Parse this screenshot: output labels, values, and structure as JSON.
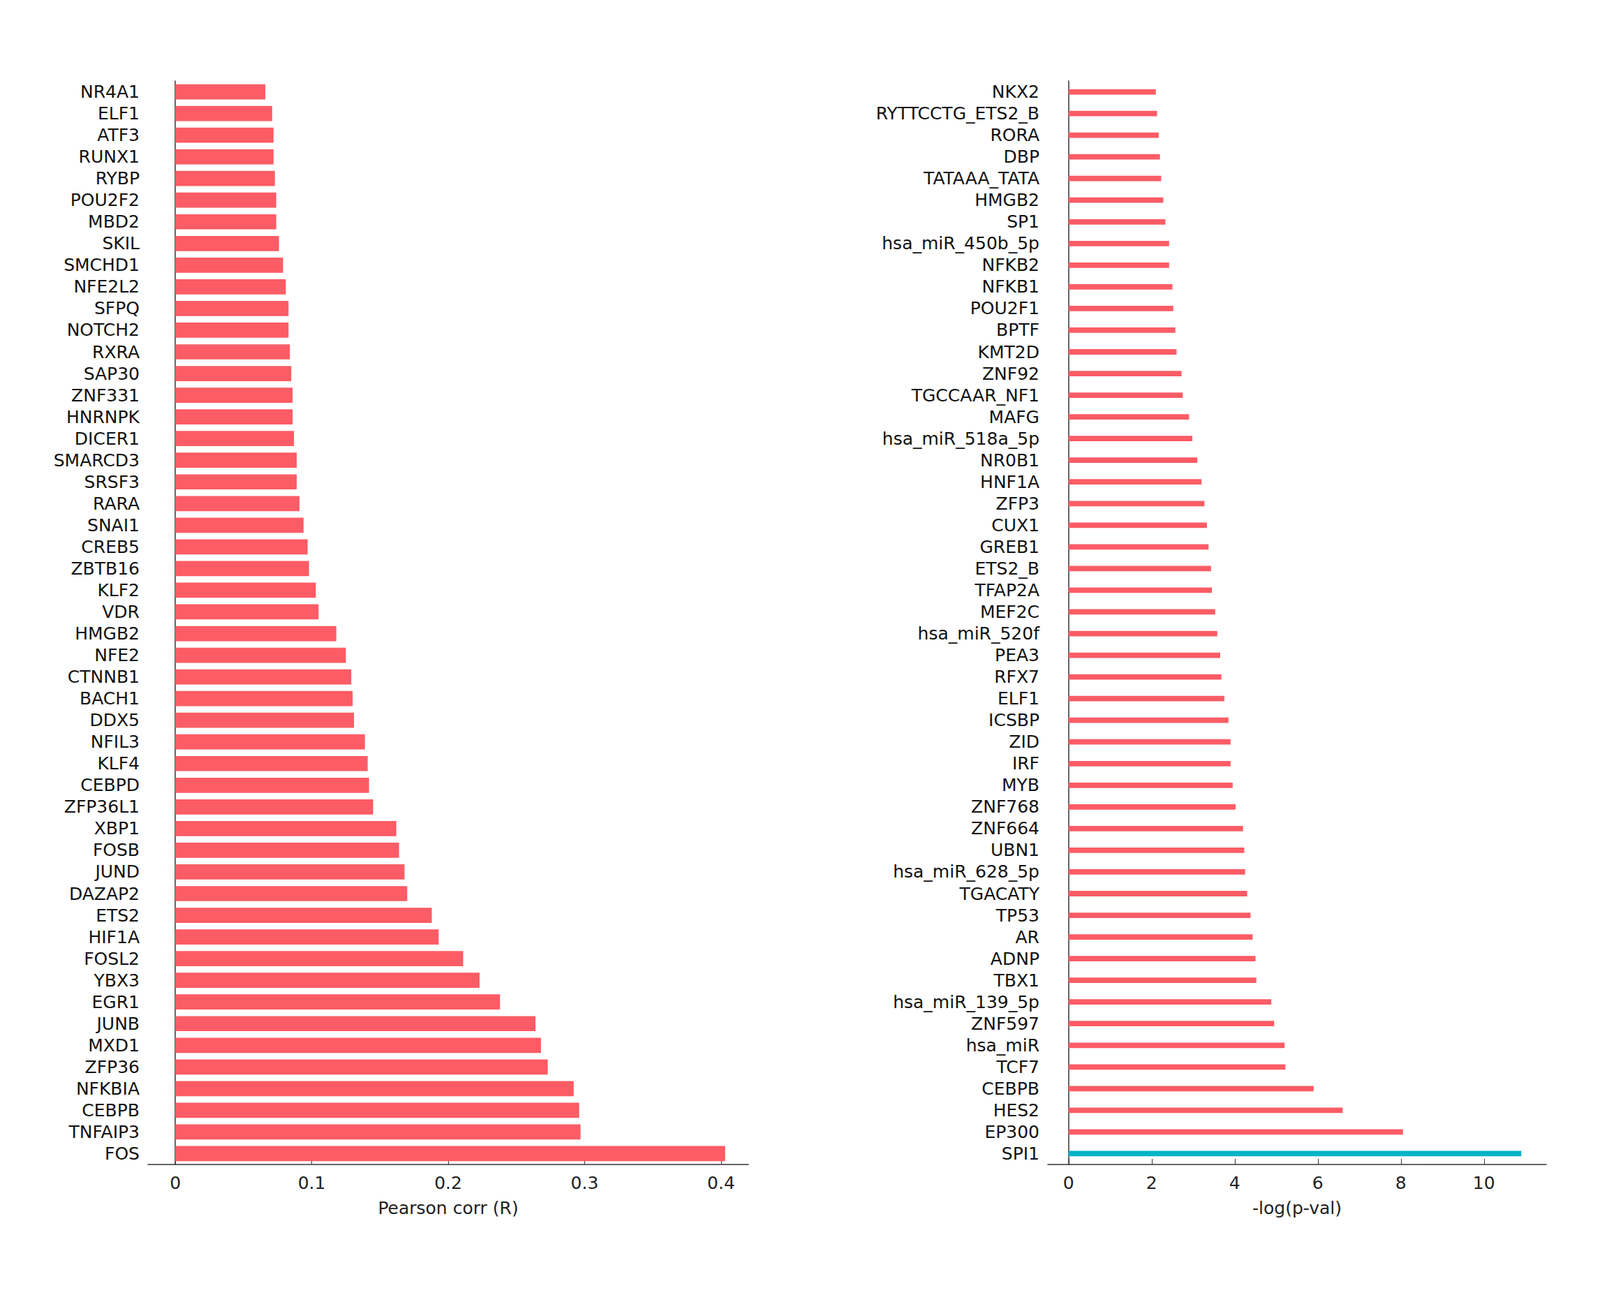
{
  "chart_data": [
    {
      "type": "bar",
      "orientation": "horizontal",
      "x_label": "Pearson corr (R)",
      "color": "#fc5c65",
      "categories": [
        "NR4A1",
        "ELF1",
        "ATF3",
        "RUNX1",
        "RYBP",
        "POU2F2",
        "MBD2",
        "SKIL",
        "SMCHD1",
        "NFE2L2",
        "SFPQ",
        "NOTCH2",
        "RXRA",
        "SAP30",
        "ZNF331",
        "HNRNPK",
        "DICER1",
        "SMARCD3",
        "SRSF3",
        "RARA",
        "SNAI1",
        "CREB5",
        "ZBTB16",
        "KLF2",
        "VDR",
        "HMGB2",
        "NFE2",
        "CTNNB1",
        "BACH1",
        "DDX5",
        "NFIL3",
        "KLF4",
        "CEBPD",
        "ZFP36L1",
        "XBP1",
        "FOSB",
        "JUND",
        "DAZAP2",
        "ETS2",
        "HIF1A",
        "FOSL2",
        "YBX3",
        "EGR1",
        "JUNB",
        "MXD1",
        "ZFP36",
        "NFKBIA",
        "CEBPB",
        "TNFAIP3",
        "FOS"
      ],
      "values": [
        0.066,
        0.071,
        0.072,
        0.072,
        0.073,
        0.074,
        0.074,
        0.076,
        0.079,
        0.081,
        0.083,
        0.083,
        0.084,
        0.085,
        0.086,
        0.086,
        0.087,
        0.089,
        0.089,
        0.091,
        0.094,
        0.097,
        0.098,
        0.103,
        0.105,
        0.118,
        0.125,
        0.129,
        0.13,
        0.131,
        0.139,
        0.141,
        0.142,
        0.145,
        0.162,
        0.164,
        0.168,
        0.17,
        0.188,
        0.193,
        0.211,
        0.223,
        0.238,
        0.264,
        0.268,
        0.273,
        0.292,
        0.296,
        0.297,
        0.403
      ],
      "xlim": [
        -0.02,
        0.42
      ],
      "xticks": [
        0,
        0.1,
        0.2,
        0.3,
        0.4
      ],
      "grid": false
    },
    {
      "type": "bar",
      "orientation": "horizontal",
      "x_label": "-log(p-val)",
      "categories": [
        "NKX2",
        "RYTTCCTG_ETS2_B",
        "RORA",
        "DBP",
        "TATAAA_TATA",
        "HMGB2",
        "SP1",
        "hsa_miR_450b_5p",
        "NFKB2",
        "NFKB1",
        "POU2F1",
        "BPTF",
        "KMT2D",
        "ZNF92",
        "TGCCAAR_NF1",
        "MAFG",
        "hsa_miR_518a_5p",
        "NR0B1",
        "HNF1A",
        "ZFP3",
        "CUX1",
        "GREB1",
        "ETS2_B",
        "TFAP2A",
        "MEF2C",
        "hsa_miR_520f",
        "PEA3",
        "RFX7",
        "ELF1",
        "ICSBP",
        "ZID",
        "IRF",
        "MYB",
        "ZNF768",
        "ZNF664",
        "UBN1",
        "hsa_miR_628_5p",
        "TGACATY",
        "TP53",
        "AR",
        "ADNP",
        "TBX1",
        "hsa_miR_139_5p",
        "ZNF597",
        "hsa_miR",
        "TCF7",
        "CEBPB",
        "HES2",
        "EP300",
        "SPI1"
      ],
      "values": [
        2.1,
        2.13,
        2.17,
        2.2,
        2.23,
        2.28,
        2.33,
        2.42,
        2.42,
        2.5,
        2.52,
        2.57,
        2.6,
        2.72,
        2.75,
        2.9,
        2.98,
        3.1,
        3.2,
        3.27,
        3.33,
        3.37,
        3.43,
        3.45,
        3.53,
        3.58,
        3.65,
        3.68,
        3.75,
        3.85,
        3.9,
        3.9,
        3.95,
        4.02,
        4.2,
        4.23,
        4.25,
        4.3,
        4.38,
        4.43,
        4.5,
        4.52,
        4.88,
        4.95,
        5.2,
        5.22,
        5.9,
        6.6,
        8.05,
        10.9
      ],
      "colors": [
        "#fc5c65",
        "#fc5c65",
        "#fc5c65",
        "#fc5c65",
        "#fc5c65",
        "#fc5c65",
        "#fc5c65",
        "#fc5c65",
        "#fc5c65",
        "#fc5c65",
        "#fc5c65",
        "#fc5c65",
        "#fc5c65",
        "#fc5c65",
        "#fc5c65",
        "#fc5c65",
        "#fc5c65",
        "#fc5c65",
        "#fc5c65",
        "#fc5c65",
        "#fc5c65",
        "#fc5c65",
        "#fc5c65",
        "#fc5c65",
        "#fc5c65",
        "#fc5c65",
        "#fc5c65",
        "#fc5c65",
        "#fc5c65",
        "#fc5c65",
        "#fc5c65",
        "#fc5c65",
        "#fc5c65",
        "#fc5c65",
        "#fc5c65",
        "#fc5c65",
        "#fc5c65",
        "#fc5c65",
        "#fc5c65",
        "#fc5c65",
        "#fc5c65",
        "#fc5c65",
        "#fc5c65",
        "#fc5c65",
        "#fc5c65",
        "#fc5c65",
        "#fc5c65",
        "#fc5c65",
        "#fc5c65",
        "#00b4c8"
      ],
      "xlim": [
        -0.5,
        11.5
      ],
      "xticks": [
        0,
        2,
        4,
        6,
        8,
        10
      ],
      "grid": false
    }
  ]
}
